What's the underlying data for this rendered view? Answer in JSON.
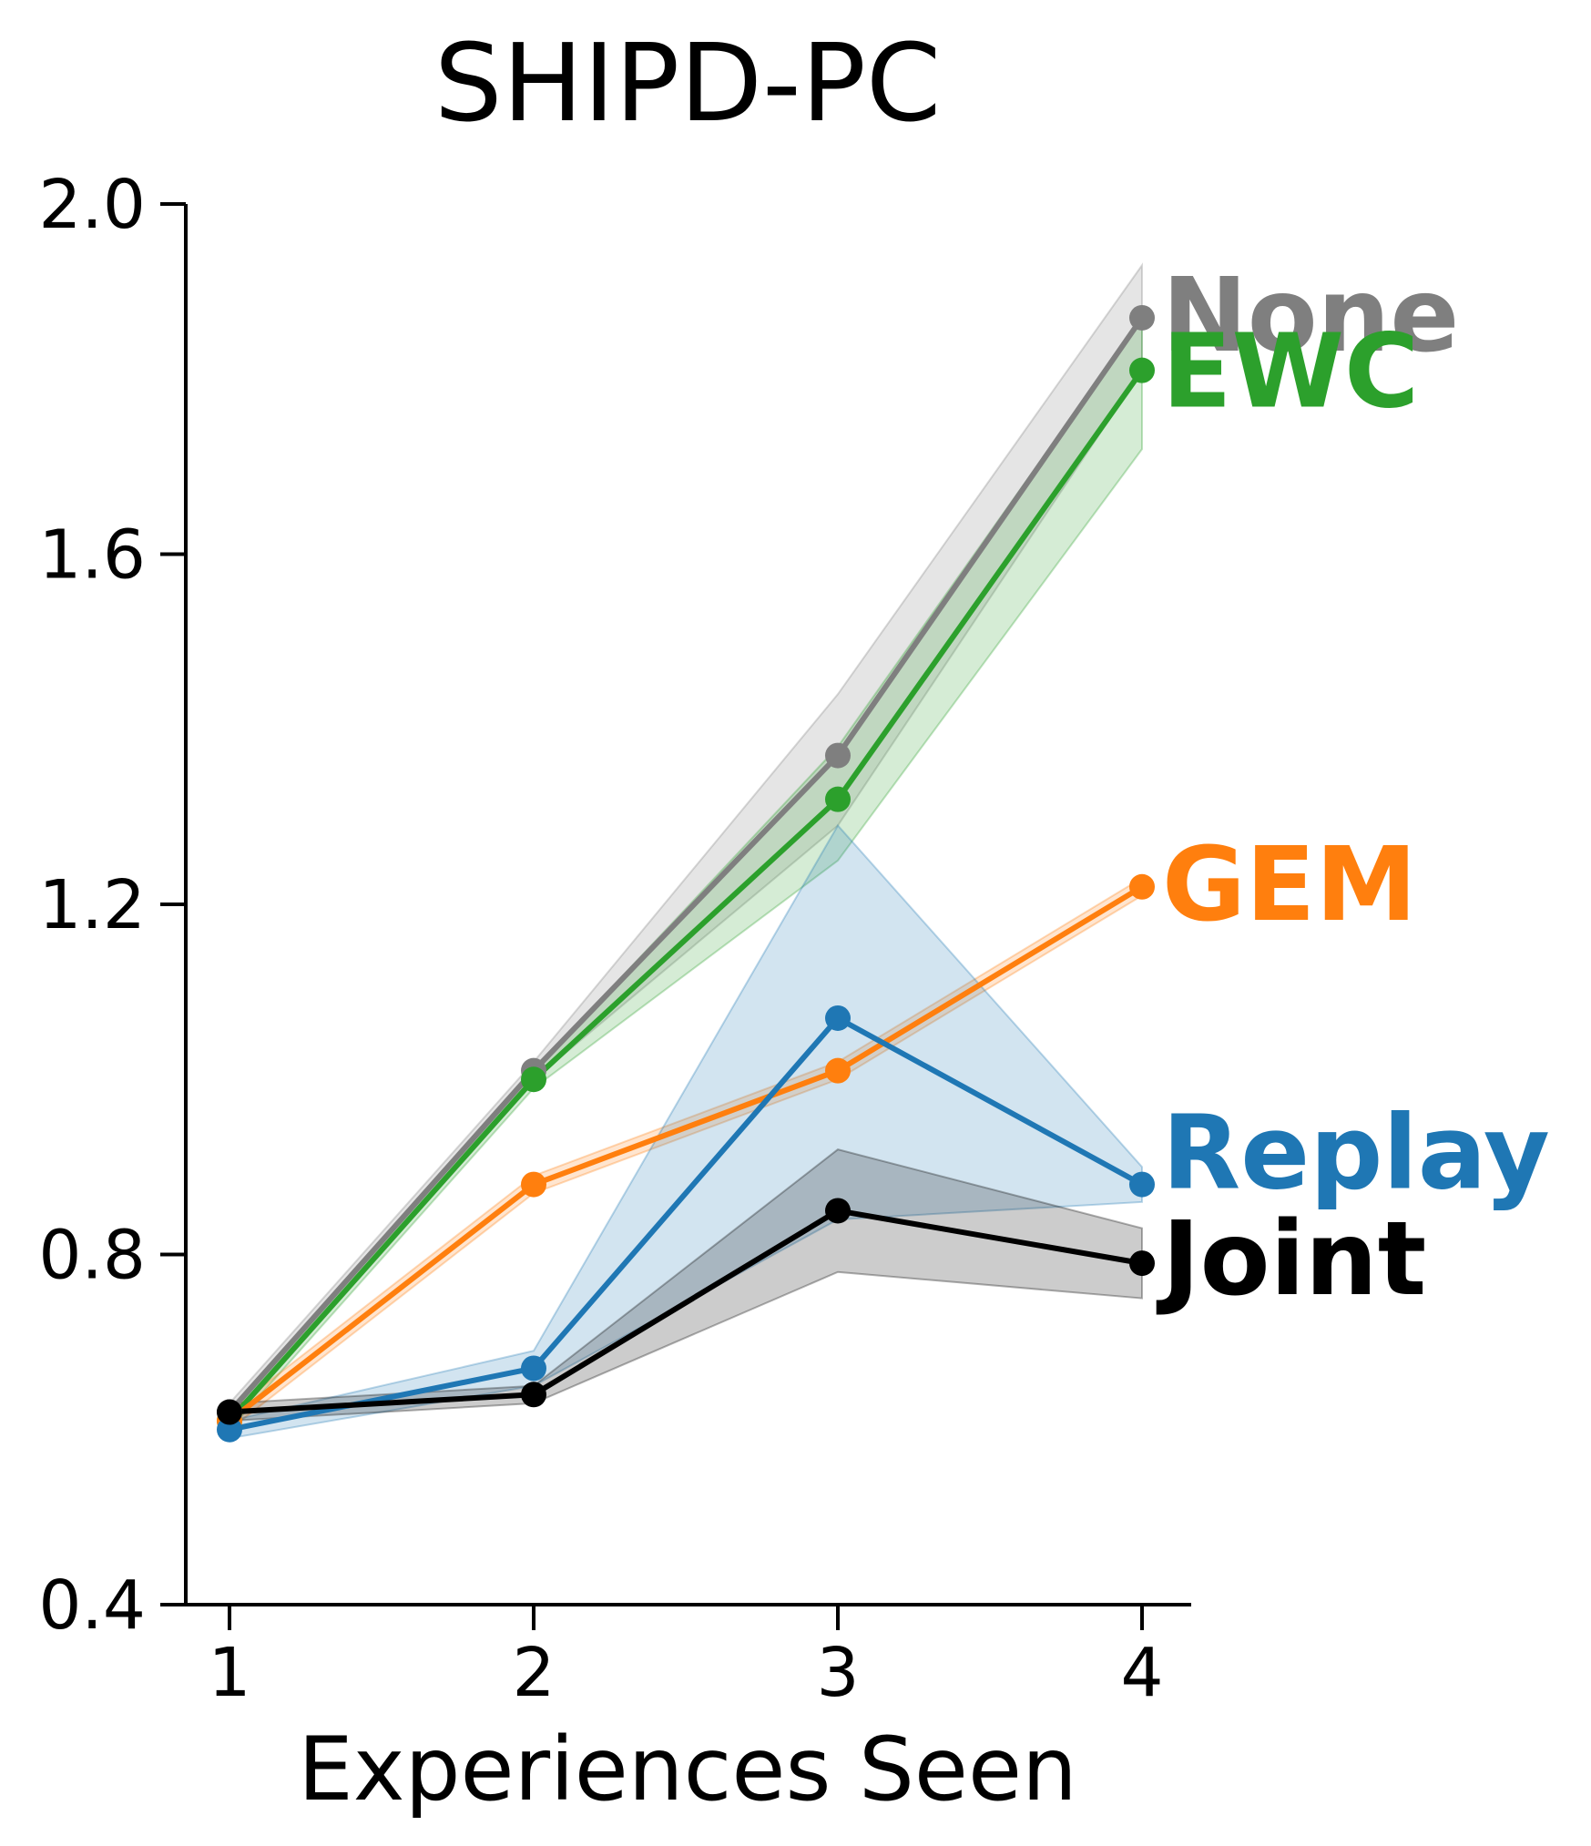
{
  "chart_data": {
    "type": "line",
    "title": "SHIPD-PC",
    "xlabel": "Experiences Seen",
    "ylabel": "",
    "x": [
      1,
      2,
      3,
      4
    ],
    "x_ticks": [
      "1",
      "2",
      "3",
      "4"
    ],
    "ylim": [
      0.4,
      2.0
    ],
    "y_ticks": [
      0.4,
      0.8,
      1.2,
      1.6,
      2.0
    ],
    "y_tick_labels": [
      "0.4",
      "0.8",
      "1.2",
      "1.6",
      "2.0"
    ],
    "grid": false,
    "legend": "inline labels at right end of each line",
    "series": [
      {
        "name": "None",
        "color": "#7f7f7f",
        "values": [
          0.62,
          1.01,
          1.37,
          1.87
        ],
        "lower": [
          0.61,
          1.0,
          1.29,
          1.81
        ],
        "upper": [
          0.63,
          1.02,
          1.44,
          1.93
        ]
      },
      {
        "name": "EWC",
        "color": "#2ca02c",
        "values": [
          0.61,
          1.0,
          1.32,
          1.81
        ],
        "lower": [
          0.6,
          0.99,
          1.25,
          1.72
        ],
        "upper": [
          0.62,
          1.01,
          1.38,
          1.87
        ]
      },
      {
        "name": "GEM",
        "color": "#ff7f0e",
        "values": [
          0.61,
          0.88,
          1.01,
          1.22
        ],
        "lower": [
          0.6,
          0.87,
          1.0,
          1.21
        ],
        "upper": [
          0.62,
          0.89,
          1.02,
          1.23
        ]
      },
      {
        "name": "Replay",
        "color": "#1f77b4",
        "values": [
          0.6,
          0.67,
          1.07,
          0.88
        ],
        "lower": [
          0.59,
          0.65,
          0.84,
          0.86
        ],
        "upper": [
          0.61,
          0.69,
          1.29,
          0.9
        ]
      },
      {
        "name": "Joint",
        "color": "#000000",
        "values": [
          0.62,
          0.64,
          0.85,
          0.79
        ],
        "lower": [
          0.61,
          0.63,
          0.78,
          0.75
        ],
        "upper": [
          0.63,
          0.65,
          0.92,
          0.83
        ]
      }
    ]
  }
}
